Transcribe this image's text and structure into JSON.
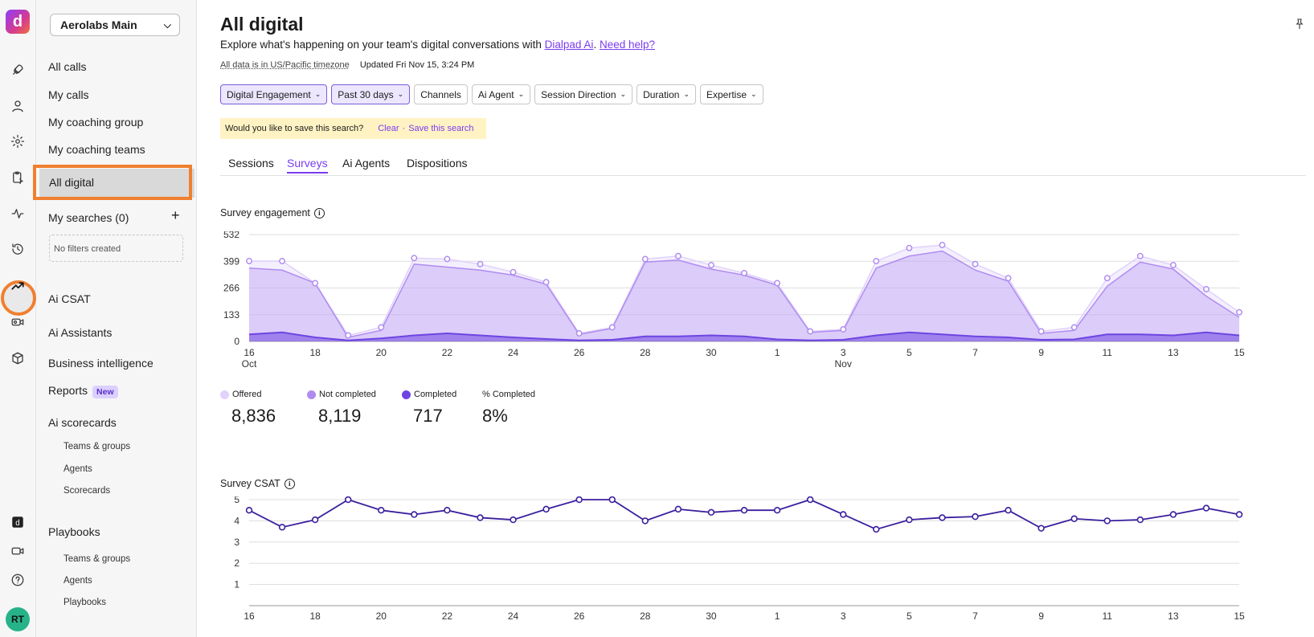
{
  "app": {
    "logo_letter": "d",
    "avatar_initials": "RT"
  },
  "rail_icons": [
    "rocket-icon",
    "user-icon",
    "gear-icon",
    "clipboard-sparkle-icon",
    "activity-icon",
    "history-icon",
    "trending-up-icon",
    "video-analytics-icon",
    "cube-icon",
    "dialpad-logo-icon",
    "video-icon",
    "help-icon"
  ],
  "sidebar": {
    "workspace": "Aerolabs Main",
    "items": {
      "all_calls": "All calls",
      "my_calls": "My calls",
      "my_coaching_group": "My coaching group",
      "my_coaching_teams": "My coaching teams",
      "all_digital": "All digital",
      "my_searches": "My searches (0)",
      "no_filters": "No filters created",
      "ai_csat": "Ai CSAT",
      "ai_assistants": "Ai Assistants",
      "business_intelligence": "Business intelligence",
      "reports": "Reports",
      "reports_badge": "New",
      "ai_scorecards": "Ai scorecards",
      "sc_teams": "Teams & groups",
      "sc_agents": "Agents",
      "sc_scorecards": "Scorecards",
      "playbooks": "Playbooks",
      "pb_teams": "Teams & groups",
      "pb_agents": "Agents",
      "pb_playbooks": "Playbooks"
    }
  },
  "header": {
    "title": "All digital",
    "subtitle_prefix": "Explore what's happening on your team's digital conversations with ",
    "subtitle_link": "Dialpad Ai",
    "subtitle_sep": ". ",
    "help_link": "Need help?",
    "timezone": "All data is in US/Pacific timezone",
    "updated": "Updated Fri Nov 15, 3:24 PM"
  },
  "filters": [
    {
      "label": "Digital Engagement",
      "active": true
    },
    {
      "label": "Past 30 days",
      "active": true
    },
    {
      "label": "Channels",
      "active": false,
      "nochev": true
    },
    {
      "label": "Ai Agent",
      "active": false
    },
    {
      "label": "Session Direction",
      "active": false
    },
    {
      "label": "Duration",
      "active": false
    },
    {
      "label": "Expertise",
      "active": false
    }
  ],
  "save_search": {
    "prompt": "Would you like to save this search?",
    "clear": "Clear",
    "sep": "·",
    "save": "Save this search"
  },
  "tabs": [
    "Sessions",
    "Surveys",
    "Ai Agents",
    "Dispositions"
  ],
  "active_tab": "Surveys",
  "colors": {
    "accent": "#7a3cf0",
    "offered": "#e0d2fb",
    "not_completed": "#b08cf0",
    "completed": "#6e45e2",
    "csat_line": "#3b1f9e",
    "highlight": "#f07f2f"
  },
  "chart_data": [
    {
      "type": "area",
      "title": "Survey engagement",
      "x": [
        "Oct 16",
        "Oct 17",
        "Oct 18",
        "Oct 19",
        "Oct 20",
        "Oct 21",
        "Oct 22",
        "Oct 23",
        "Oct 24",
        "Oct 25",
        "Oct 26",
        "Oct 27",
        "Oct 28",
        "Oct 29",
        "Oct 30",
        "Oct 31",
        "Nov 1",
        "Nov 2",
        "Nov 3",
        "Nov 4",
        "Nov 5",
        "Nov 6",
        "Nov 7",
        "Nov 8",
        "Nov 9",
        "Nov 10",
        "Nov 11",
        "Nov 12",
        "Nov 13",
        "Nov 14",
        "Nov 15"
      ],
      "x_tick_labels": [
        "16",
        "18",
        "20",
        "22",
        "24",
        "26",
        "28",
        "30",
        "1",
        "3",
        "5",
        "7",
        "9",
        "11",
        "13",
        "15"
      ],
      "x_tick_index": [
        0,
        2,
        4,
        6,
        8,
        10,
        12,
        14,
        16,
        18,
        20,
        22,
        24,
        26,
        28,
        30
      ],
      "x_month_labels": [
        {
          "label": "Oct",
          "index": 0
        },
        {
          "label": "Nov",
          "index": 18
        }
      ],
      "yticks": [
        0,
        133,
        266,
        399,
        532
      ],
      "ylim": [
        0,
        532
      ],
      "series": [
        {
          "name": "Offered",
          "values": [
            400,
            400,
            290,
            30,
            70,
            415,
            410,
            385,
            345,
            295,
            40,
            70,
            410,
            425,
            380,
            340,
            290,
            50,
            60,
            400,
            465,
            480,
            385,
            315,
            50,
            70,
            315,
            425,
            380,
            260,
            145
          ]
        },
        {
          "name": "Not completed",
          "values": [
            365,
            355,
            290,
            20,
            55,
            385,
            370,
            355,
            330,
            285,
            35,
            65,
            395,
            405,
            360,
            330,
            280,
            45,
            55,
            365,
            425,
            450,
            355,
            300,
            40,
            55,
            275,
            395,
            360,
            225,
            120
          ]
        },
        {
          "name": "Completed",
          "values": [
            35,
            45,
            20,
            5,
            15,
            30,
            40,
            30,
            20,
            12,
            5,
            8,
            25,
            25,
            30,
            25,
            10,
            5,
            8,
            30,
            45,
            35,
            25,
            20,
            8,
            10,
            35,
            35,
            30,
            45,
            30
          ]
        }
      ],
      "summary": [
        {
          "label": "Offered",
          "value": "8,836"
        },
        {
          "label": "Not completed",
          "value": "8,119"
        },
        {
          "label": "Completed",
          "value": "717"
        },
        {
          "label": "% Completed",
          "value": "8%"
        }
      ]
    },
    {
      "type": "line",
      "title": "Survey CSAT",
      "x_tick_labels": [
        "16",
        "18",
        "20",
        "22",
        "24",
        "26",
        "28",
        "30",
        "1",
        "3",
        "5",
        "7",
        "9",
        "11",
        "13",
        "15"
      ],
      "yticks": [
        1,
        2,
        3,
        4,
        5
      ],
      "ylim": [
        0,
        5
      ],
      "series": [
        {
          "name": "",
          "values": [
            4.5,
            3.7,
            4.05,
            5,
            4.5,
            4.3,
            4.5,
            4.15,
            4.05,
            4.55,
            5,
            5,
            4,
            4.55,
            4.4,
            4.5,
            4.5,
            5,
            4.3,
            3.6,
            4.05,
            4.15,
            4.2,
            4.5,
            3.65,
            4.1,
            4,
            4.05,
            4.3,
            4.6,
            4.3
          ]
        }
      ]
    }
  ]
}
